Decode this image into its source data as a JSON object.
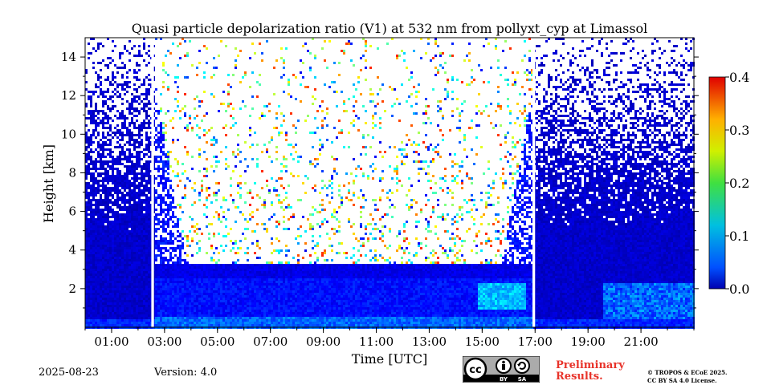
{
  "chart_data": {
    "type": "heatmap",
    "title": "Quasi particle depolarization ratio (V1) at 532 nm from pollyxt_cyp at Limassol",
    "xlabel": "Time [UTC]",
    "ylabel": "Height [km]",
    "x_range_hours": [
      0,
      23
    ],
    "ylim": [
      0,
      15
    ],
    "x_ticks": [
      "01:00",
      "03:00",
      "05:00",
      "07:00",
      "09:00",
      "11:00",
      "13:00",
      "15:00",
      "17:00",
      "19:00",
      "21:00"
    ],
    "x_tick_hours": [
      1,
      3,
      5,
      7,
      9,
      11,
      13,
      15,
      17,
      19,
      21
    ],
    "y_ticks": [
      2,
      4,
      6,
      8,
      10,
      12,
      14
    ],
    "colorbar": {
      "min": 0.0,
      "max": 0.4,
      "ticks": [
        "0.0",
        "0.1",
        "0.2",
        "0.3",
        "0.4"
      ],
      "colormap": "jet"
    },
    "data_gaps_hours": [
      [
        2.5,
        2.6
      ],
      [
        16.9,
        17.0
      ]
    ],
    "boundary_layer_top_km": 3.4,
    "series": [
      {
        "time_range_hours": [
          0,
          2.5
        ],
        "height_range_km": [
          0,
          15
        ],
        "typical_value": 0.03
      },
      {
        "time_range_hours": [
          2.6,
          16.9
        ],
        "height_range_km": [
          0,
          3.5
        ],
        "typical_value": 0.06
      },
      {
        "time_range_hours": [
          14.8,
          16.6
        ],
        "height_range_km": [
          1.0,
          2.4
        ],
        "typical_value": 0.12
      },
      {
        "time_range_hours": [
          17.0,
          23
        ],
        "height_range_km": [
          0,
          15
        ],
        "typical_value": 0.03
      },
      {
        "time_range_hours": [
          19.5,
          23
        ],
        "height_range_km": [
          0.3,
          2.2
        ],
        "typical_value": 0.1
      }
    ]
  },
  "footer": {
    "date": "2025-08-23",
    "version": "Version: 4.0",
    "preliminary_line1": "Preliminary",
    "preliminary_line2": "Results.",
    "license_line1": "© TROPOS & ECoE 2025.",
    "license_line2": "CC BY SA 4.0 License.",
    "cc_badge": {
      "label_by": "BY",
      "label_sa": "SA",
      "icon": "creative-commons-icon"
    }
  },
  "colors": {
    "preliminary": "#e8332a"
  }
}
